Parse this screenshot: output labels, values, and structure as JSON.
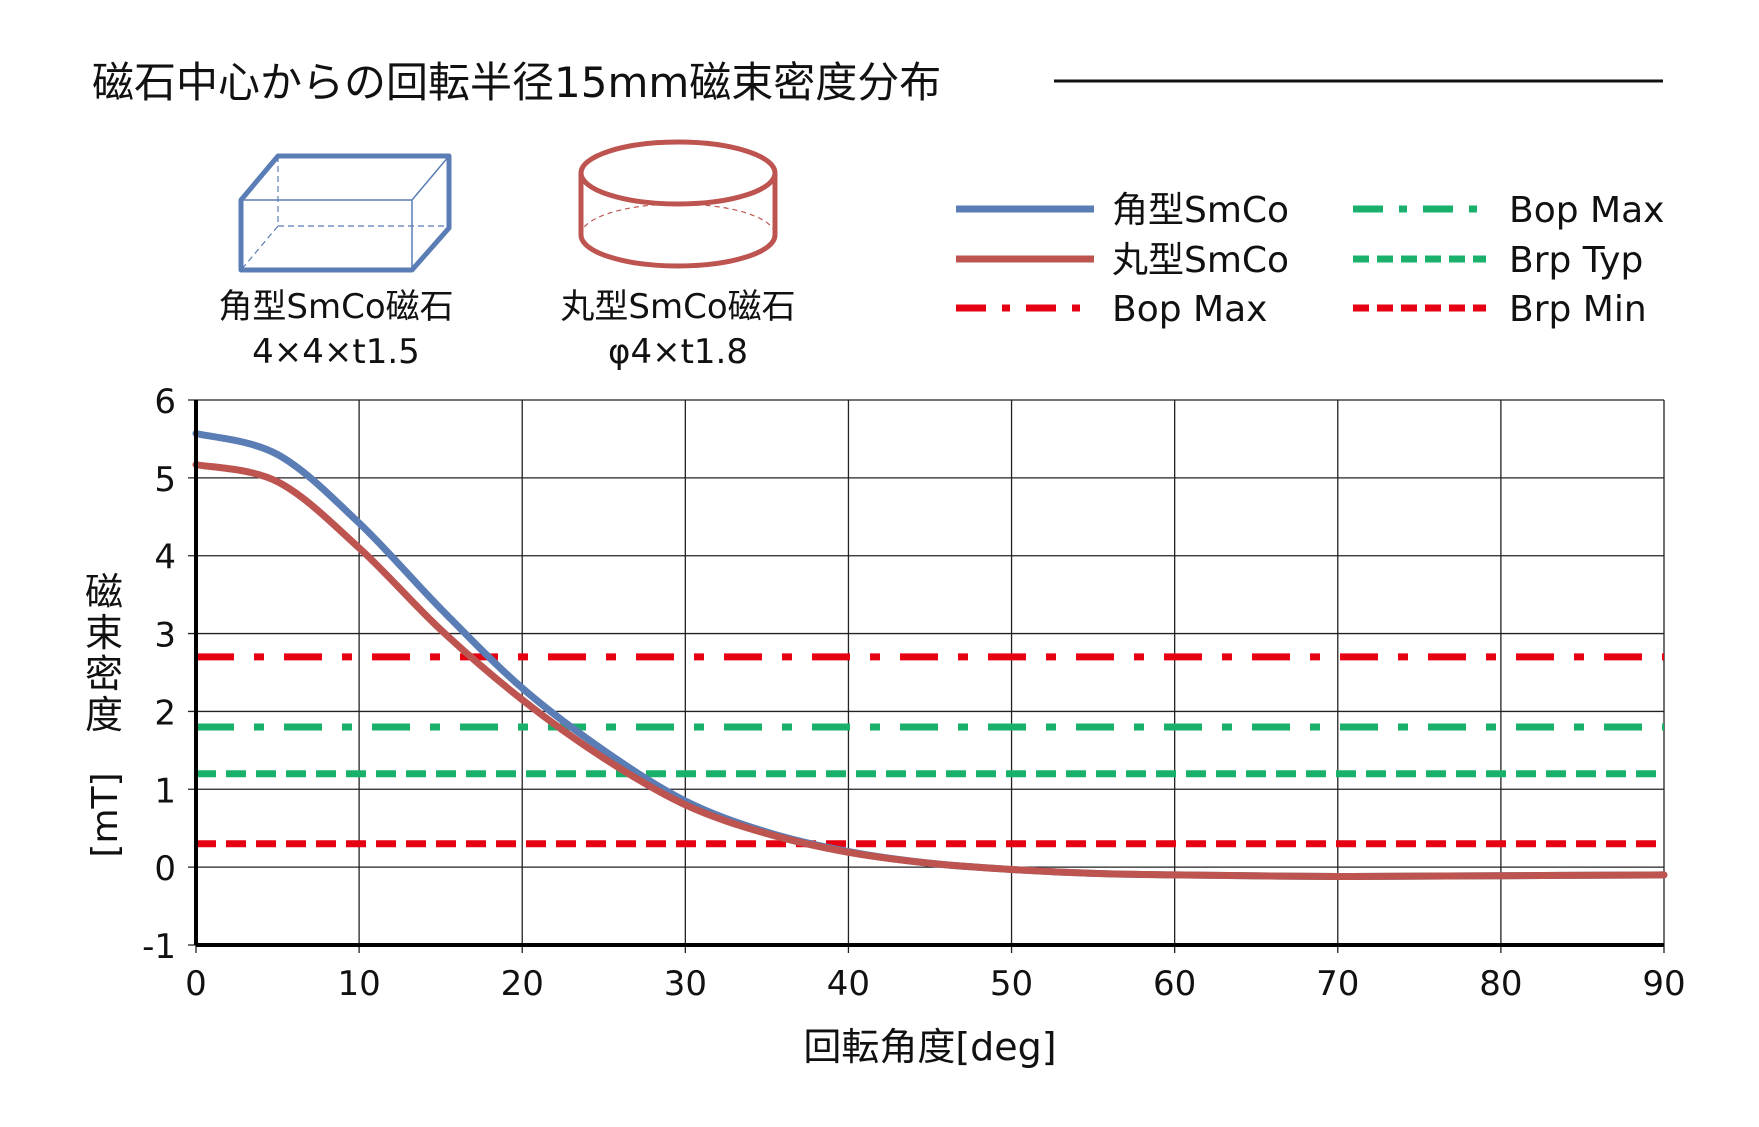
{
  "chart_data": {
    "type": "line",
    "title": "磁石中心からの回転半径15mm磁束密度分布",
    "xlabel": "回転角度[deg]",
    "ylabel_chars": [
      "磁",
      "束",
      "密",
      "度"
    ],
    "ylabel_unit": "[mT]",
    "xlim": [
      0,
      90
    ],
    "ylim": [
      -1,
      6
    ],
    "xticks": [
      "0",
      "10",
      "20",
      "30",
      "40",
      "50",
      "60",
      "70",
      "80",
      "90"
    ],
    "yticks": [
      "-1",
      "0",
      "1",
      "2",
      "3",
      "4",
      "5",
      "6"
    ],
    "grid": true,
    "legend_position": "top-right",
    "x": [
      0,
      5,
      10,
      15,
      20,
      25,
      30,
      35,
      40,
      45,
      50,
      55,
      60,
      70,
      80,
      90
    ],
    "series": [
      {
        "name": "角型SmCo",
        "color": "#5a7db5",
        "style": "solid",
        "values": [
          5.57,
          5.3,
          4.42,
          3.32,
          2.3,
          1.5,
          0.85,
          0.45,
          0.2,
          0.05,
          -0.03,
          -0.08,
          -0.1,
          -0.12,
          -0.11,
          -0.1
        ]
      },
      {
        "name": "丸型SmCo",
        "color": "#bd5450",
        "style": "solid",
        "values": [
          5.17,
          4.95,
          4.1,
          3.05,
          2.15,
          1.4,
          0.8,
          0.43,
          0.19,
          0.05,
          -0.03,
          -0.08,
          -0.1,
          -0.12,
          -0.11,
          -0.1
        ]
      }
    ],
    "reference_lines": [
      {
        "name": "Bop Max",
        "value": 2.7,
        "color": "#e60012",
        "style": "dashdot"
      },
      {
        "name": "Bop Max",
        "value": 1.8,
        "color": "#18b06a",
        "style": "dashdot"
      },
      {
        "name": "Brp Typ",
        "value": 1.2,
        "color": "#18b06a",
        "style": "dashed"
      },
      {
        "name": "Brp Min",
        "value": 0.3,
        "color": "#e60012",
        "style": "dashed"
      }
    ]
  },
  "magnets": [
    {
      "name": "角型SmCo磁石",
      "size": "4×4×t1.5"
    },
    {
      "name": "丸型SmCo磁石",
      "size": "φ4×t1.8"
    }
  ]
}
